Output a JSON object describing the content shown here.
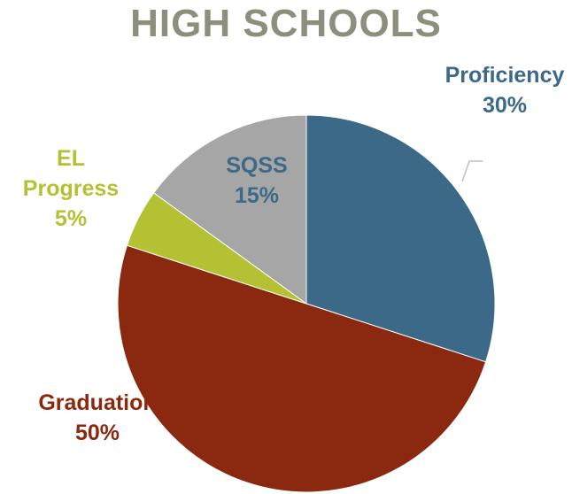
{
  "chart_data": {
    "type": "pie",
    "title": "HIGH SCHOOLS",
    "categories": [
      "Proficiency",
      "Graduation",
      "EL Progress",
      "SQSS"
    ],
    "values": [
      30,
      50,
      5,
      15
    ],
    "value_labels": [
      "30%",
      "50%",
      "5%",
      "15%"
    ],
    "colors": [
      "#3b6987",
      "#8b2910",
      "#b4c133",
      "#a6a6a6"
    ]
  }
}
